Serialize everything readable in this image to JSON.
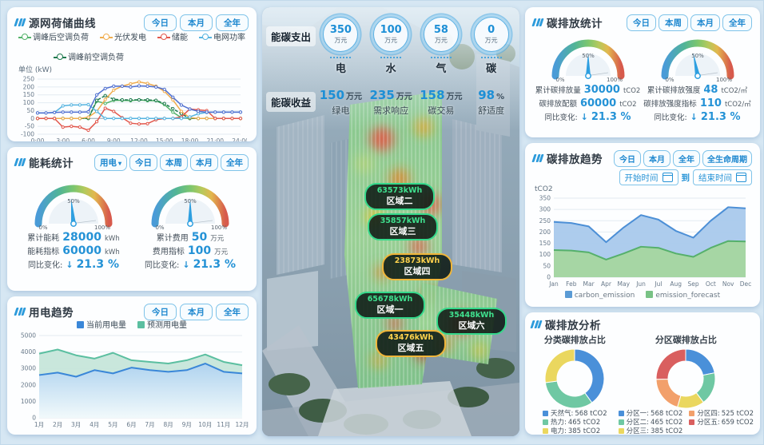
{
  "panels": {
    "grid_curve": {
      "title": "源网荷储曲线",
      "buttons": [
        "今日",
        "本月",
        "全年"
      ],
      "unit_label": "单位 (kW)",
      "legend": [
        {
          "label": "调峰后空调负荷",
          "color": "#53b36a"
        },
        {
          "label": "光伏发电",
          "color": "#f0ad4e"
        },
        {
          "label": "储能",
          "color": "#e2574c"
        },
        {
          "label": "电网功率",
          "color": "#56b4e0"
        },
        {
          "label": "调峰前空调负荷",
          "color": "#1f7a4f"
        }
      ]
    },
    "energy_stats": {
      "title": "能耗统计",
      "dropdown_label": "用电",
      "buttons": [
        "今日",
        "本周",
        "本月",
        "全年"
      ],
      "gauges": [
        {
          "rows": [
            {
              "label": "累计能耗",
              "value": "28000",
              "unit": "kWh"
            },
            {
              "label": "能耗指标",
              "value": "60000",
              "unit": "kWh"
            }
          ],
          "yoy_label": "同比变化:",
          "yoy_value": "21.3 %"
        },
        {
          "rows": [
            {
              "label": "累计费用",
              "value": "50",
              "unit": "万元"
            },
            {
              "label": "费用指标",
              "value": "100",
              "unit": "万元"
            }
          ],
          "yoy_label": "同比变化:",
          "yoy_value": "21.3 %"
        }
      ]
    },
    "power_trend": {
      "title": "用电趋势",
      "buttons": [
        "今日",
        "本月",
        "全年"
      ],
      "legend": [
        {
          "label": "当前用电量",
          "color": "#3a87d8"
        },
        {
          "label": "预测用电量",
          "color": "#5bbfa0"
        }
      ]
    },
    "center": {
      "expense_label": "能碳支出",
      "income_label": "能碳收益",
      "expenses": [
        {
          "value": "350",
          "unit": "万元",
          "name": "电"
        },
        {
          "value": "100",
          "unit": "万元",
          "name": "水"
        },
        {
          "value": "58",
          "unit": "万元",
          "name": "气"
        },
        {
          "value": "0",
          "unit": "万元",
          "name": "碳"
        }
      ],
      "incomes": [
        {
          "value": "150",
          "unit": "万元",
          "name": "绿电"
        },
        {
          "value": "235",
          "unit": "万元",
          "name": "需求响应"
        },
        {
          "value": "158",
          "unit": "万元",
          "name": "碳交易"
        },
        {
          "value": "98",
          "unit": "%",
          "name": "舒适度"
        }
      ],
      "zones": [
        {
          "value": "63573kWh",
          "name": "区域二",
          "accent": "green"
        },
        {
          "value": "35857kWh",
          "name": "区域三",
          "accent": "green"
        },
        {
          "value": "23873kWh",
          "name": "区域四",
          "accent": "yellow"
        },
        {
          "value": "65678kWh",
          "name": "区域一",
          "accent": "green"
        },
        {
          "value": "35448kWh",
          "name": "区域六",
          "accent": "green"
        },
        {
          "value": "43476kWh",
          "name": "区域五",
          "accent": "yellow"
        }
      ]
    },
    "carbon_stats": {
      "title": "碳排放统计",
      "buttons": [
        "今日",
        "本周",
        "本月",
        "全年"
      ],
      "gauges": [
        {
          "rows": [
            {
              "label": "累计碳排放量",
              "value": "30000",
              "unit": "tCO2"
            },
            {
              "label": "碳排放配额",
              "value": "60000",
              "unit": "tCO2"
            }
          ],
          "yoy_label": "同比变化:",
          "yoy_value": "21.3 %"
        },
        {
          "rows": [
            {
              "label": "累计碳排放强度",
              "value": "48",
              "unit": "tCO2/㎡"
            },
            {
              "label": "碳排放强度指标",
              "value": "110",
              "unit": "tCO2/㎡"
            }
          ],
          "yoy_label": "同比变化:",
          "yoy_value": "21.3 %"
        }
      ]
    },
    "carbon_trend": {
      "title": "碳排放趋势",
      "buttons": [
        "今日",
        "本月",
        "全年",
        "全生命周期"
      ],
      "date_start": "开始时间",
      "date_joiner": "到",
      "date_end": "结束时间",
      "ylabel": "tCO2",
      "legend": [
        {
          "label": "carbon_emission",
          "color": "#5b9bd5"
        },
        {
          "label": "emission_forecast",
          "color": "#79c285"
        }
      ]
    },
    "carbon_analysis": {
      "title": "碳排放分析",
      "category": {
        "subtitle": "分类碳排放占比",
        "items": [
          {
            "label": "天然气:",
            "value": "568 tCO2",
            "color": "#4a90d9"
          },
          {
            "label": "热力:",
            "value": "465 tCO2",
            "color": "#6fc8a3"
          },
          {
            "label": "电力:",
            "value": "385 tCO2",
            "color": "#ead75f"
          }
        ]
      },
      "zone": {
        "subtitle": "分区碳排放占比",
        "items": [
          {
            "label": "分区一:",
            "value": "568 tCO2",
            "color": "#4a90d9"
          },
          {
            "label": "分区二:",
            "value": "465 tCO2",
            "color": "#6fc8a3"
          },
          {
            "label": "分区三:",
            "value": "385 tCO2",
            "color": "#ead75f"
          },
          {
            "label": "分区四:",
            "value": "525 tCO2",
            "color": "#f2a06b"
          },
          {
            "label": "分区五:",
            "value": "659 tCO2",
            "color": "#d95f5f"
          }
        ]
      }
    }
  },
  "chart_data": [
    {
      "id": "grid-curve",
      "type": "line",
      "title": "源网荷储曲线",
      "ylabel": "单位 (kW)",
      "ylim": [
        -100,
        250
      ],
      "ystep": 50,
      "xticks": [
        "0:00",
        "3:00",
        "6:00",
        "9:00",
        "12:00",
        "15:00",
        "18:00",
        "21:00",
        "24:00"
      ],
      "series": [
        {
          "name": "调峰后空调负荷",
          "color": "#53b36a",
          "values": [
            0,
            0,
            0,
            0,
            0,
            0,
            0,
            110,
            95,
            115,
            115,
            113,
            118,
            113,
            113,
            88,
            40,
            5,
            0,
            0,
            0,
            0,
            0,
            0,
            0
          ]
        },
        {
          "name": "调峰前空调负荷",
          "color": "#1f7a4f",
          "dash": true,
          "values": [
            0,
            0,
            0,
            0,
            0,
            0,
            0,
            115,
            145,
            122,
            118,
            118,
            118,
            118,
            115,
            95,
            62,
            30,
            0,
            0,
            0,
            0,
            0,
            0,
            0
          ]
        },
        {
          "name": "光伏发电",
          "color": "#f0ad4e",
          "values": [
            0,
            0,
            0,
            0,
            0,
            0,
            8,
            45,
            120,
            180,
            205,
            220,
            232,
            222,
            205,
            172,
            118,
            45,
            5,
            0,
            0,
            0,
            0,
            0,
            0
          ]
        },
        {
          "name": "储能",
          "color": "#e2574c",
          "values": [
            0,
            0,
            0,
            -55,
            -50,
            -55,
            -75,
            -20,
            65,
            45,
            5,
            -30,
            -35,
            -33,
            -8,
            0,
            0,
            10,
            60,
            55,
            50,
            0,
            0,
            0,
            0
          ]
        },
        {
          "name": "电网功率",
          "color": "#56b4e0",
          "values": [
            35,
            35,
            38,
            80,
            86,
            86,
            88,
            45,
            0,
            0,
            0,
            0,
            0,
            0,
            0,
            0,
            0,
            0,
            10,
            30,
            38,
            40,
            40,
            40,
            40
          ]
        },
        {
          "name": "",
          "color": "#4f6fd0",
          "values": [
            35,
            35,
            38,
            40,
            40,
            40,
            42,
            150,
            190,
            205,
            205,
            200,
            207,
            205,
            200,
            185,
            135,
            85,
            60,
            45,
            40,
            40,
            40,
            40,
            40
          ]
        }
      ]
    },
    {
      "id": "power-trend",
      "type": "area",
      "title": "用电趋势",
      "categories": [
        "1月",
        "2月",
        "3月",
        "4月",
        "5月",
        "6月",
        "7月",
        "8月",
        "9月",
        "10月",
        "11月",
        "12月"
      ],
      "ylim": [
        0,
        5000
      ],
      "ystep": 1000,
      "fill_order": [
        1,
        0
      ],
      "series": [
        {
          "name": "当前用电量",
          "color": "#3a87d8",
          "fill": "#aed2f0",
          "gradfill": true,
          "values": [
            2600,
            2750,
            2500,
            2900,
            2700,
            3050,
            2900,
            2800,
            2900,
            3300,
            2800,
            2700
          ]
        },
        {
          "name": "预测用电量",
          "color": "#5bbfa0",
          "fill": "#c6e6da",
          "values": [
            3900,
            4150,
            3800,
            3600,
            3950,
            3500,
            3400,
            3300,
            3500,
            3850,
            3400,
            3200
          ]
        }
      ]
    },
    {
      "id": "carbon-trend",
      "type": "area",
      "title": "碳排放趋势",
      "ylabel": "tCO2",
      "categories": [
        "Jan",
        "Feb",
        "Mar",
        "Apr",
        "May",
        "Jun",
        "Jul",
        "Aug",
        "Sep",
        "Oct",
        "Nov",
        "Dec"
      ],
      "ylim": [
        0,
        350
      ],
      "ystep": 50,
      "fill_order": [
        0,
        1
      ],
      "series": [
        {
          "name": "carbon_emission",
          "color": "#4c8fd6",
          "fill": "#a9c9ec",
          "values": [
            245,
            240,
            225,
            155,
            220,
            275,
            255,
            205,
            175,
            250,
            310,
            305
          ]
        },
        {
          "name": "emission_forecast",
          "color": "#55b06b",
          "fill": "#a5d6a0",
          "values": [
            120,
            118,
            110,
            78,
            105,
            135,
            130,
            105,
            90,
            130,
            160,
            158
          ]
        }
      ]
    },
    {
      "id": "donut-category",
      "type": "pie",
      "title": "分类碳排放占比",
      "unit": "tCO2",
      "labels": [
        "天然气",
        "热力",
        "电力"
      ],
      "values": [
        568,
        465,
        385
      ],
      "colors": [
        "#4a90d9",
        "#6fc8a3",
        "#ead75f"
      ]
    },
    {
      "id": "donut-zone",
      "type": "pie",
      "title": "分区碳排放占比",
      "unit": "tCO2",
      "labels": [
        "分区一",
        "分区二",
        "分区三",
        "分区四",
        "分区五"
      ],
      "values": [
        568,
        465,
        385,
        525,
        659
      ],
      "colors": [
        "#4a90d9",
        "#6fc8a3",
        "#ead75f",
        "#f2a06b",
        "#d95f5f"
      ]
    },
    {
      "id": "gauge-energy-kwh",
      "type": "gauge",
      "pct": 0.47,
      "pct_labels": [
        "0%",
        "50%",
        "100%"
      ]
    },
    {
      "id": "gauge-energy-cost",
      "type": "gauge",
      "pct": 0.5,
      "pct_labels": [
        "0%",
        "50%",
        "100%"
      ]
    },
    {
      "id": "gauge-carbon-amount",
      "type": "gauge",
      "pct": 0.5,
      "pct_labels": [
        "0%",
        "50%",
        "100%"
      ]
    },
    {
      "id": "gauge-carbon-intensity",
      "type": "gauge",
      "pct": 0.44,
      "pct_labels": [
        "0%",
        "50%",
        "100%"
      ]
    }
  ]
}
